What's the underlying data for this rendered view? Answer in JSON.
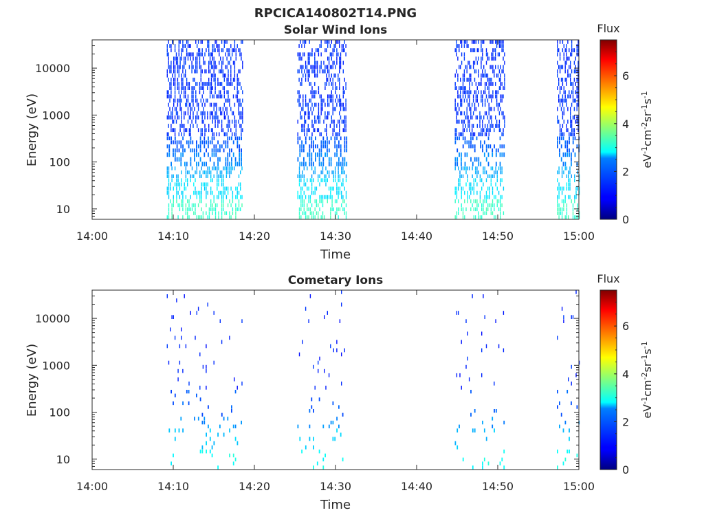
{
  "figure": {
    "filename": "RPCICA140802T14.PNG"
  },
  "colorbar": {
    "label": "Flux",
    "units_parts": [
      "eV",
      "-1",
      "cm",
      "-2",
      "sr",
      "-1",
      "s",
      "-1"
    ],
    "range": [
      0,
      7.5
    ],
    "ticks": [
      "0",
      "2",
      "4",
      "6"
    ],
    "colormap": "jet"
  },
  "chart_data": [
    {
      "type": "heatmap",
      "title": "Solar Wind Ions",
      "xlabel": "Time",
      "ylabel": "Energy (eV)",
      "x_ticks": [
        "14:00",
        "14:10",
        "14:20",
        "14:30",
        "14:40",
        "14:50",
        "15:00"
      ],
      "x_range_minutes": [
        0,
        60
      ],
      "y_scale": "log",
      "y_ticks": [
        "10",
        "100",
        "1000",
        "10000"
      ],
      "y_range": [
        6,
        40000
      ],
      "intervals_minutes": [
        [
          9.2,
          18.5
        ],
        [
          25.3,
          31.3
        ],
        [
          44.7,
          50.8
        ],
        [
          57.3,
          60
        ]
      ],
      "bands": [
        {
          "e_lo": 6,
          "e_hi": 16,
          "flux": 3.2,
          "density": 0.45,
          "sample_width": 0.12
        },
        {
          "e_lo": 16,
          "e_hi": 45,
          "flux": 2.6,
          "density": 0.4,
          "sample_width": 0.12
        },
        {
          "e_lo": 45,
          "e_hi": 80,
          "flux": 2.2,
          "density": 0.45,
          "sample_width": 0.12
        },
        {
          "e_lo": 80,
          "e_hi": 160,
          "flux": 1.9,
          "density": 0.45,
          "sample_width": 0.15
        },
        {
          "e_lo": 160,
          "e_hi": 350,
          "flux": 1.6,
          "density": 0.5,
          "sample_width": 0.15
        },
        {
          "e_lo": 350,
          "e_hi": 40000,
          "flux": 1.3,
          "density": 0.42,
          "sample_width": 0.1
        }
      ]
    },
    {
      "type": "heatmap",
      "title": "Cometary Ions",
      "xlabel": "Time",
      "ylabel": "Energy (eV)",
      "x_ticks": [
        "14:00",
        "14:10",
        "14:20",
        "14:30",
        "14:40",
        "14:50",
        "15:00"
      ],
      "x_range_minutes": [
        0,
        60
      ],
      "y_scale": "log",
      "y_ticks": [
        "10",
        "100",
        "1000",
        "10000"
      ],
      "y_range": [
        6,
        40000
      ],
      "intervals_minutes": [
        [
          9.2,
          18.5
        ],
        [
          25.3,
          31.3
        ],
        [
          44.7,
          50.8
        ],
        [
          57.3,
          60
        ]
      ],
      "bands": [
        {
          "e_lo": 6,
          "e_hi": 16,
          "flux": 2.9,
          "density": 0.07,
          "sample_width": 0.15
        },
        {
          "e_lo": 16,
          "e_hi": 45,
          "flux": 2.4,
          "density": 0.07,
          "sample_width": 0.15
        },
        {
          "e_lo": 45,
          "e_hi": 80,
          "flux": 2.0,
          "density": 0.09,
          "sample_width": 0.15
        },
        {
          "e_lo": 80,
          "e_hi": 300,
          "flux": 1.6,
          "density": 0.05,
          "sample_width": 0.15
        },
        {
          "e_lo": 300,
          "e_hi": 40000,
          "flux": 1.2,
          "density": 0.03,
          "sample_width": 0.12
        }
      ]
    }
  ]
}
